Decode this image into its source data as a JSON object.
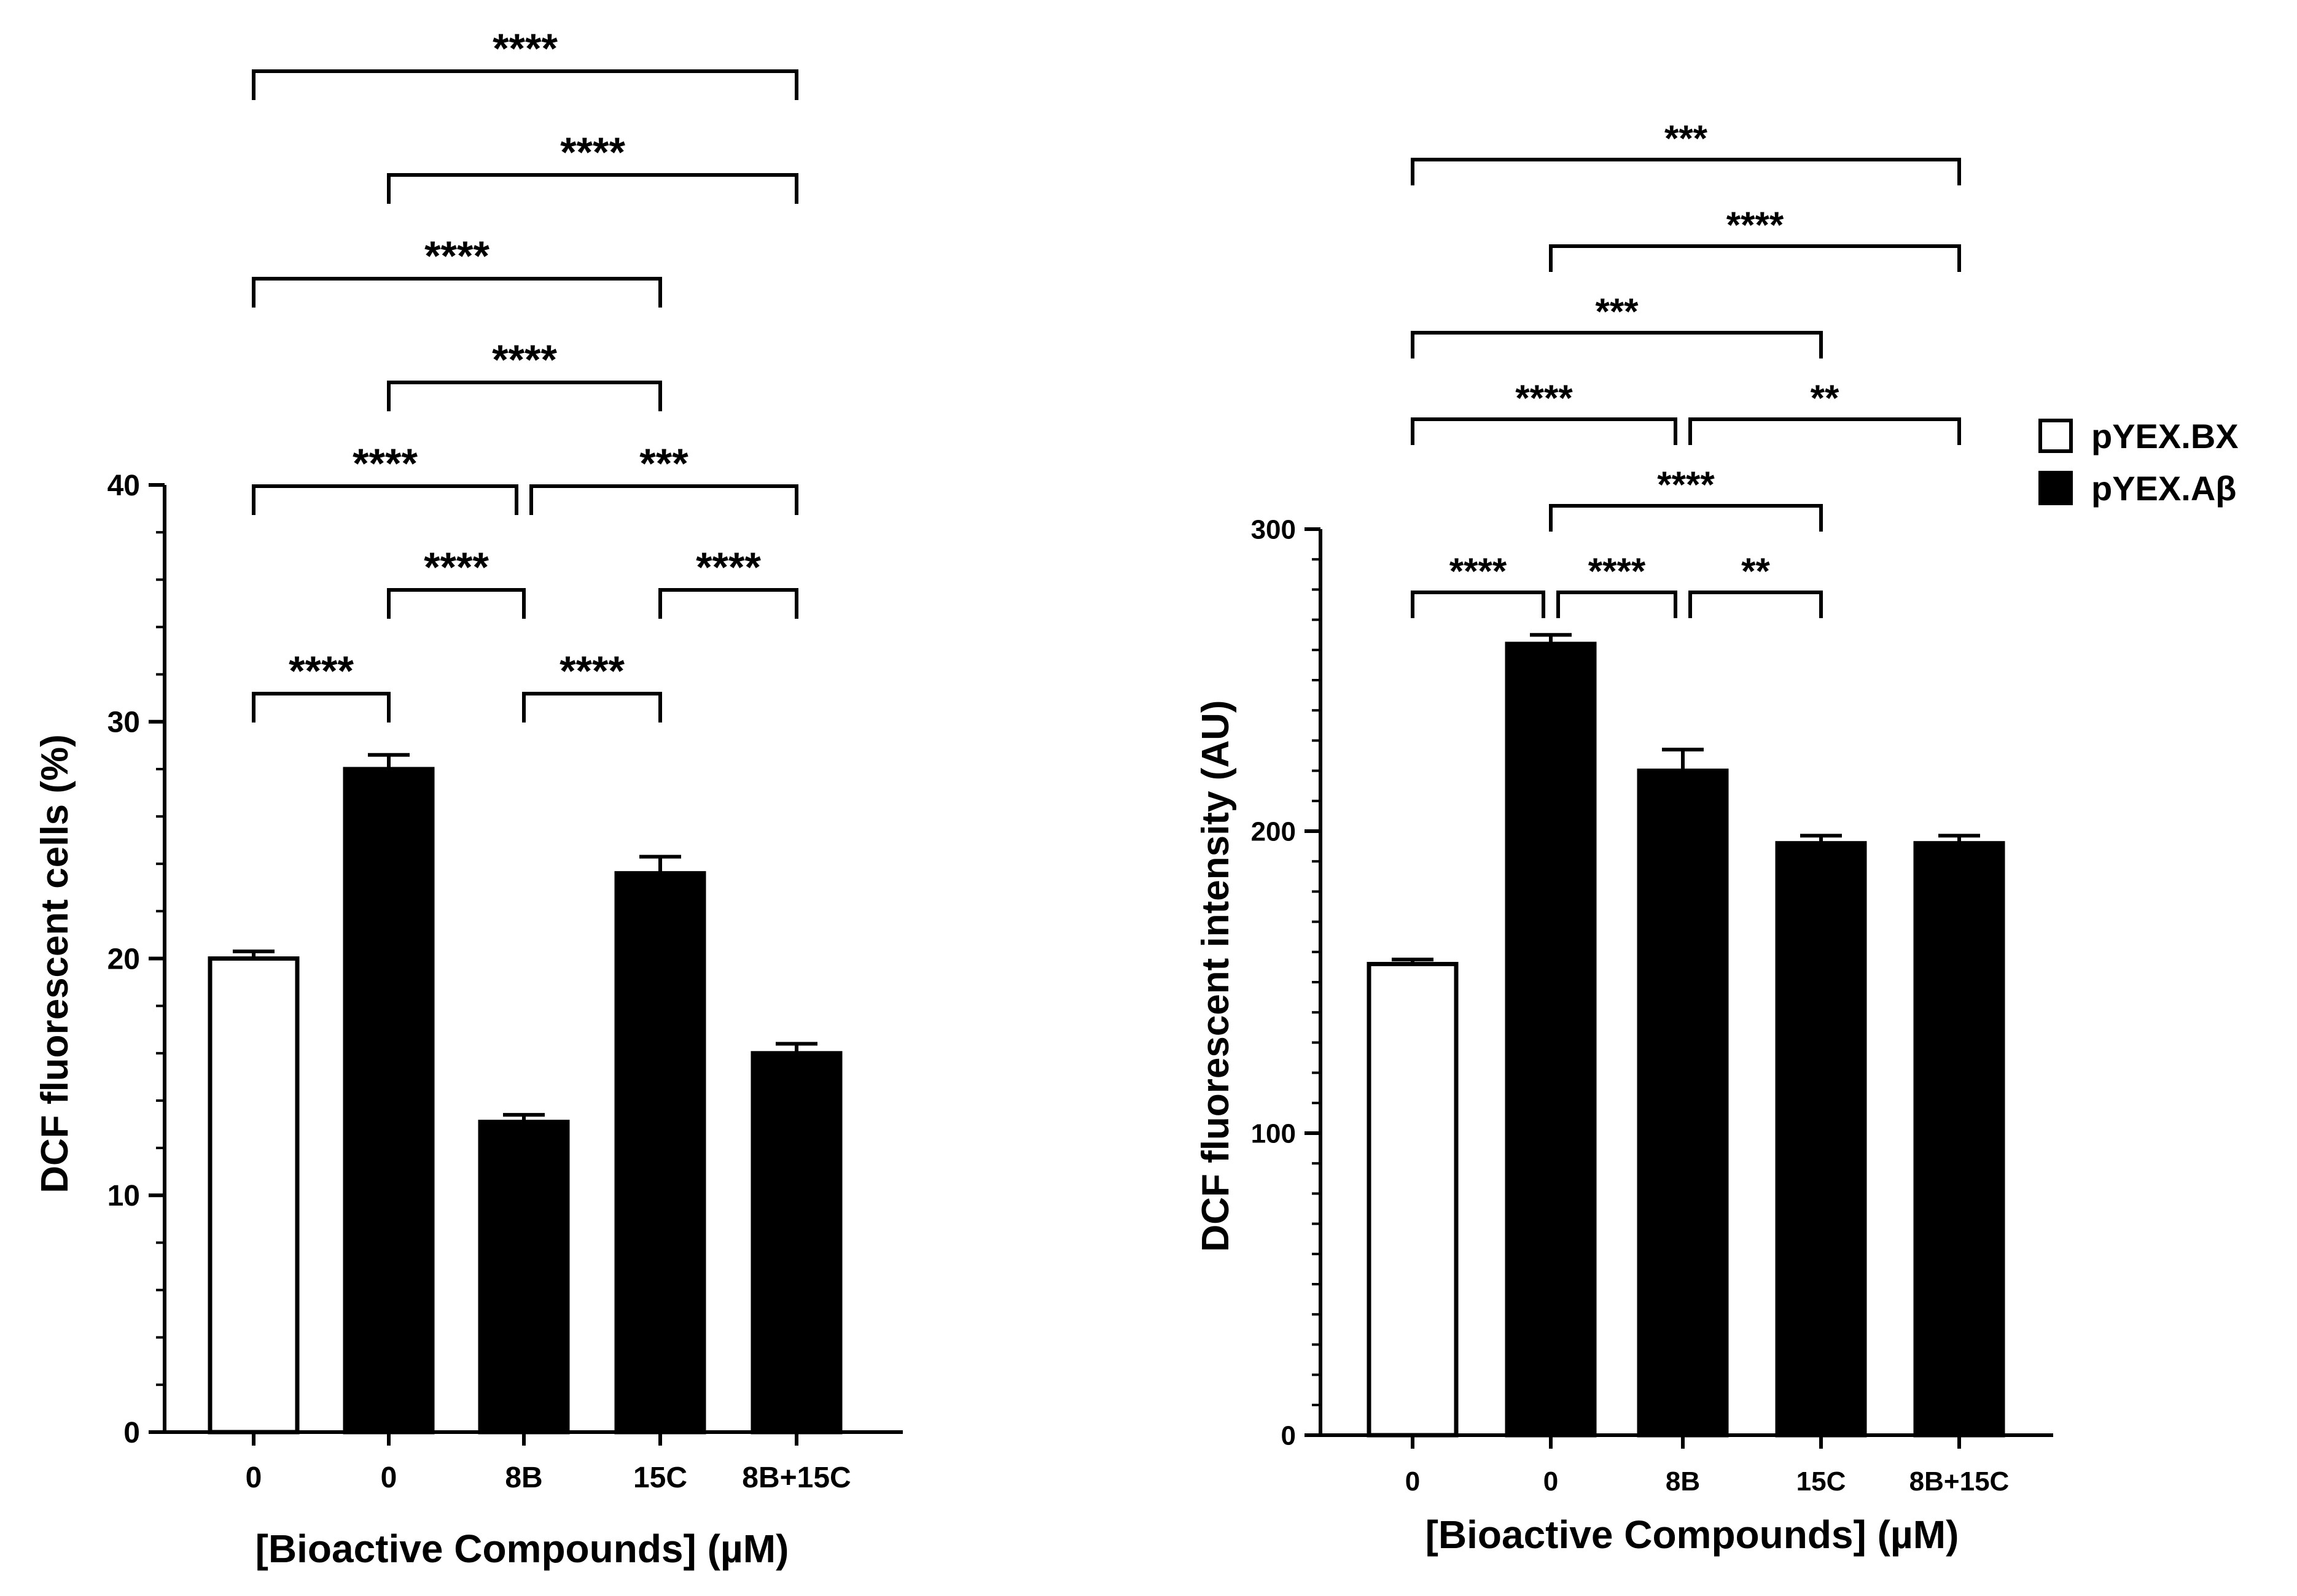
{
  "colors": {
    "control": "#ffffff",
    "treated": "#000000",
    "stroke": "#000000"
  },
  "legend": [
    {
      "label": "pYEX.BX",
      "fill": "#ffffff"
    },
    {
      "label": "pYEX.Aβ",
      "fill": "#000000"
    }
  ],
  "chart_data": [
    {
      "type": "bar",
      "categories": [
        "0",
        "0",
        "8B",
        "15C",
        "8B+15C"
      ],
      "values": [
        20,
        28,
        13.1,
        23.6,
        16
      ],
      "errors": [
        0.3,
        0.6,
        0.3,
        0.7,
        0.4
      ],
      "fills": [
        "#ffffff",
        "#000000",
        "#000000",
        "#000000",
        "#000000"
      ],
      "ylabel": "DCF fluorescent cells (%)",
      "xlabel": "[Bioactive Compounds] (µM)",
      "ylim": [
        0,
        40
      ],
      "major_ticks": [
        0,
        10,
        20,
        30,
        40
      ],
      "minor_step": 2,
      "significance": [
        {
          "from": 0,
          "to": 1,
          "label": "****",
          "level": 0
        },
        {
          "from": 2,
          "to": 3,
          "label": "****",
          "level": 0
        },
        {
          "from": 1,
          "to": 2,
          "label": "****",
          "level": 1
        },
        {
          "from": 3,
          "to": 4,
          "label": "****",
          "level": 1
        },
        {
          "from": 0,
          "to": 2,
          "label": "****",
          "level": 2
        },
        {
          "from": 2,
          "to": 4,
          "label": "***",
          "level": 2
        },
        {
          "from": 1,
          "to": 3,
          "label": "****",
          "level": 3
        },
        {
          "from": 0,
          "to": 3,
          "label": "****",
          "level": 4
        },
        {
          "from": 1,
          "to": 4,
          "label": "****",
          "level": 5
        },
        {
          "from": 0,
          "to": 4,
          "label": "****",
          "level": 6
        }
      ]
    },
    {
      "type": "bar",
      "categories": [
        "0",
        "0",
        "8B",
        "15C",
        "8B+15C"
      ],
      "values": [
        156,
        262,
        220,
        196,
        196
      ],
      "errors": [
        1.5,
        3,
        7,
        2.5,
        2.5
      ],
      "fills": [
        "#ffffff",
        "#000000",
        "#000000",
        "#000000",
        "#000000"
      ],
      "ylabel": "DCF fluorescent intensity (AU)",
      "xlabel": "[Bioactive Compounds] (µM)",
      "ylim": [
        0,
        300
      ],
      "major_ticks": [
        0,
        100,
        200,
        300
      ],
      "minor_step": 10,
      "significance": [
        {
          "from": 0,
          "to": 1,
          "label": "****",
          "level": 0
        },
        {
          "from": 1,
          "to": 2,
          "label": "****",
          "level": 0
        },
        {
          "from": 2,
          "to": 3,
          "label": "**",
          "level": 0
        },
        {
          "from": 1,
          "to": 3,
          "label": "****",
          "level": 1
        },
        {
          "from": 0,
          "to": 2,
          "label": "****",
          "level": 2
        },
        {
          "from": 2,
          "to": 4,
          "label": "**",
          "level": 2
        },
        {
          "from": 0,
          "to": 3,
          "label": "***",
          "level": 3
        },
        {
          "from": 1,
          "to": 4,
          "label": "****",
          "level": 4
        },
        {
          "from": 0,
          "to": 4,
          "label": "***",
          "level": 5
        }
      ]
    }
  ]
}
